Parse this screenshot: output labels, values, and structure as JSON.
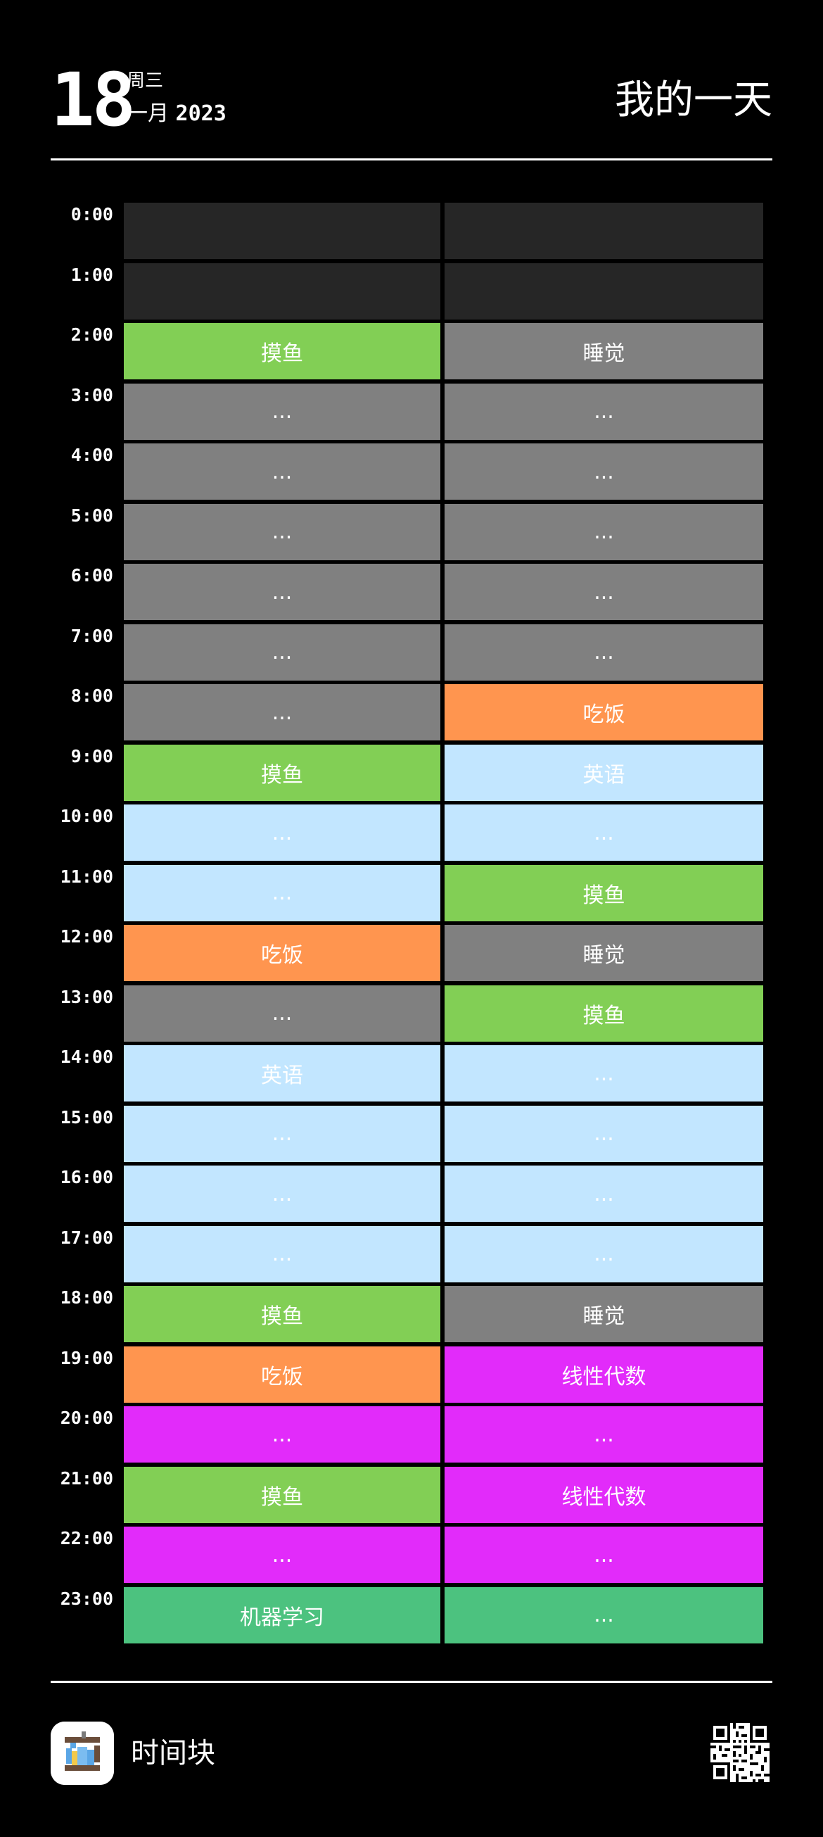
{
  "header": {
    "day": "18",
    "weekday": "周三",
    "month": "一月",
    "year": "2023",
    "title": "我的一天"
  },
  "colors": {
    "empty": "#262626",
    "sleep_gray": "#808080",
    "green": "#82cf55",
    "orange": "#ff954f",
    "light_blue": "#c2e6ff",
    "magenta": "#e22bfa",
    "teal": "#4cc27f"
  },
  "schedule": [
    {
      "time": "0:00",
      "left": {
        "text": "",
        "color": "#262626"
      },
      "right": {
        "text": "",
        "color": "#262626"
      }
    },
    {
      "time": "1:00",
      "left": {
        "text": "",
        "color": "#262626"
      },
      "right": {
        "text": "",
        "color": "#262626"
      }
    },
    {
      "time": "2:00",
      "left": {
        "text": "摸鱼",
        "color": "#82cf55"
      },
      "right": {
        "text": "睡觉",
        "color": "#808080"
      }
    },
    {
      "time": "3:00",
      "left": {
        "text": "...",
        "color": "#808080"
      },
      "right": {
        "text": "...",
        "color": "#808080"
      }
    },
    {
      "time": "4:00",
      "left": {
        "text": "...",
        "color": "#808080"
      },
      "right": {
        "text": "...",
        "color": "#808080"
      }
    },
    {
      "time": "5:00",
      "left": {
        "text": "...",
        "color": "#808080"
      },
      "right": {
        "text": "...",
        "color": "#808080"
      }
    },
    {
      "time": "6:00",
      "left": {
        "text": "...",
        "color": "#808080"
      },
      "right": {
        "text": "...",
        "color": "#808080"
      }
    },
    {
      "time": "7:00",
      "left": {
        "text": "...",
        "color": "#808080"
      },
      "right": {
        "text": "...",
        "color": "#808080"
      }
    },
    {
      "time": "8:00",
      "left": {
        "text": "...",
        "color": "#808080"
      },
      "right": {
        "text": "吃饭",
        "color": "#ff954f"
      }
    },
    {
      "time": "9:00",
      "left": {
        "text": "摸鱼",
        "color": "#82cf55"
      },
      "right": {
        "text": "英语",
        "color": "#c2e6ff"
      }
    },
    {
      "time": "10:00",
      "left": {
        "text": "...",
        "color": "#c2e6ff"
      },
      "right": {
        "text": "...",
        "color": "#c2e6ff"
      }
    },
    {
      "time": "11:00",
      "left": {
        "text": "...",
        "color": "#c2e6ff"
      },
      "right": {
        "text": "摸鱼",
        "color": "#82cf55"
      }
    },
    {
      "time": "12:00",
      "left": {
        "text": "吃饭",
        "color": "#ff954f"
      },
      "right": {
        "text": "睡觉",
        "color": "#808080"
      }
    },
    {
      "time": "13:00",
      "left": {
        "text": "...",
        "color": "#808080"
      },
      "right": {
        "text": "摸鱼",
        "color": "#82cf55"
      }
    },
    {
      "time": "14:00",
      "left": {
        "text": "英语",
        "color": "#c2e6ff"
      },
      "right": {
        "text": "...",
        "color": "#c2e6ff"
      }
    },
    {
      "time": "15:00",
      "left": {
        "text": "...",
        "color": "#c2e6ff"
      },
      "right": {
        "text": "...",
        "color": "#c2e6ff"
      }
    },
    {
      "time": "16:00",
      "left": {
        "text": "...",
        "color": "#c2e6ff"
      },
      "right": {
        "text": "...",
        "color": "#c2e6ff"
      }
    },
    {
      "time": "17:00",
      "left": {
        "text": "...",
        "color": "#c2e6ff"
      },
      "right": {
        "text": "...",
        "color": "#c2e6ff"
      }
    },
    {
      "time": "18:00",
      "left": {
        "text": "摸鱼",
        "color": "#82cf55"
      },
      "right": {
        "text": "睡觉",
        "color": "#808080"
      }
    },
    {
      "time": "19:00",
      "left": {
        "text": "吃饭",
        "color": "#ff954f"
      },
      "right": {
        "text": "线性代数",
        "color": "#e22bfa"
      }
    },
    {
      "time": "20:00",
      "left": {
        "text": "...",
        "color": "#e22bfa"
      },
      "right": {
        "text": "...",
        "color": "#e22bfa"
      }
    },
    {
      "time": "21:00",
      "left": {
        "text": "摸鱼",
        "color": "#82cf55"
      },
      "right": {
        "text": "线性代数",
        "color": "#e22bfa"
      }
    },
    {
      "time": "22:00",
      "left": {
        "text": "...",
        "color": "#e22bfa"
      },
      "right": {
        "text": "...",
        "color": "#e22bfa"
      }
    },
    {
      "time": "23:00",
      "left": {
        "text": "机器学习",
        "color": "#4cc27f"
      },
      "right": {
        "text": "...",
        "color": "#4cc27f"
      }
    }
  ],
  "footer": {
    "app_name": "时间块",
    "app_icon": "hourglass-pixel-icon",
    "qr_icon": "qr-code-icon"
  }
}
